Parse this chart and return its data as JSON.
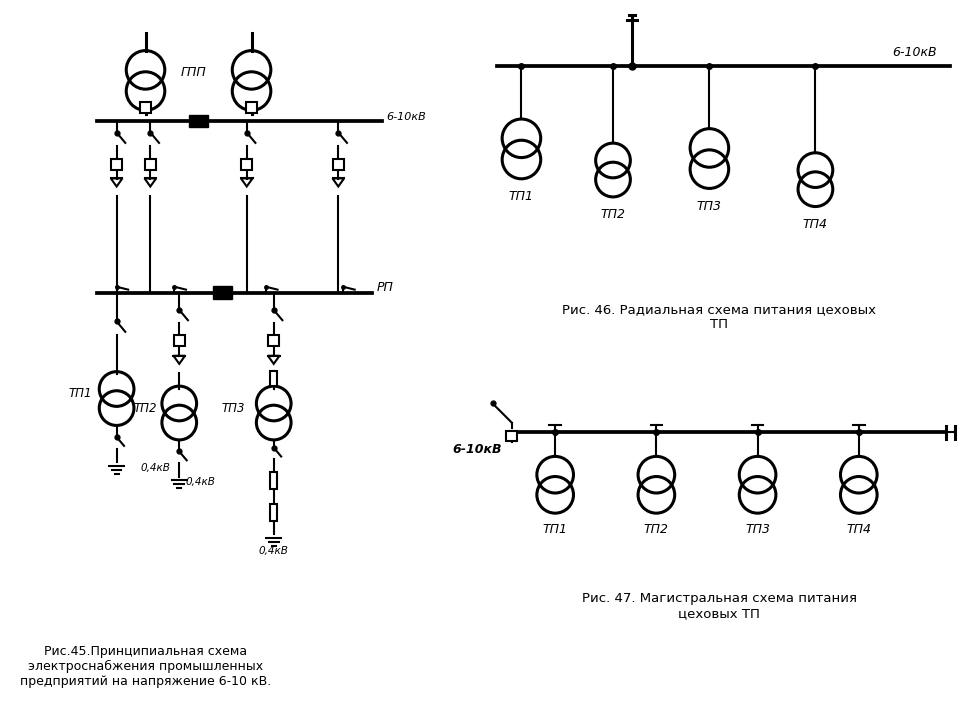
{
  "bg_color": "#ffffff",
  "line_color": "#000000",
  "fig46_title": "Рис. 46. Радиальная схема питания цеховых\nТП",
  "fig47_title": "Рис. 47. Магистральная схема питания\nцеховых ТП",
  "fig45_title": "Рис.45.Принципиальная схема\nэлектроснабжения промышленных\nпредприятий на напряжение 6-10 кВ.",
  "voltage_label_6_10": "6-10кВ",
  "voltage_label_6_10_italic": "6-10кВ",
  "voltage_label_04": "0,4кВ",
  "gpp_label": "ГПП",
  "rp_label": "РП",
  "tp45_labels": [
    "ТП1",
    "ТП2",
    "ТП3"
  ],
  "tp46_labels": [
    "ТП1",
    "ТП2",
    "ТП3",
    "ТП4"
  ],
  "tp47_labels": [
    "ТП1",
    "ТП2",
    "ТП3",
    "ТП4"
  ],
  "lw": 1.5,
  "lw2": 2.2
}
